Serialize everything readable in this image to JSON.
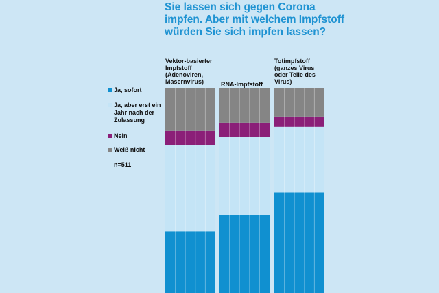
{
  "title_lines": [
    "Sie lassen sich gegen Corona",
    "impfen. Aber mit welchem Impfstoff",
    "würden Sie sich impfen lassen?"
  ],
  "colors": {
    "ja_sofort": "#1090d0",
    "ja_nach_zulassung": "#c4e4f6",
    "nein": "#8b1f78",
    "weiss_nicht": "#858585"
  },
  "legend": {
    "items": [
      {
        "label": "Ja, sofort",
        "color": "#1090d0"
      },
      {
        "label": "Ja, aber erst ein Jahr nach der Zulassung",
        "color": "#c4e4f6"
      },
      {
        "label": "Nein",
        "color": "#8b1f78"
      },
      {
        "label": "Weiß nicht",
        "color": "#858585"
      }
    ],
    "n": "n=511"
  },
  "chart_data": {
    "type": "bar",
    "stacked": true,
    "title": "Sie lassen sich gegen Corona impfen. Aber mit welchem Impfstoff würden Sie sich impfen lassen?",
    "unit": "%",
    "ylim": [
      0,
      100
    ],
    "grid": false,
    "legend_position": "left",
    "categories": [
      "Vektor-basierter Impfstoff (Adenoviren, Masernvirus)",
      "RNA-Impfstoff",
      "Totimpfstoff (ganzes Virus oder Teile des Virus)"
    ],
    "series": [
      {
        "name": "Ja, sofort",
        "values": [
          30,
          38,
          49
        ]
      },
      {
        "name": "Ja, aber erst ein Jahr nach der Zulassung",
        "values": [
          42,
          38,
          32
        ]
      },
      {
        "name": "Nein",
        "values": [
          7,
          7,
          5
        ]
      },
      {
        "name": "Weiß nicht",
        "values": [
          21,
          17,
          14
        ]
      }
    ]
  }
}
